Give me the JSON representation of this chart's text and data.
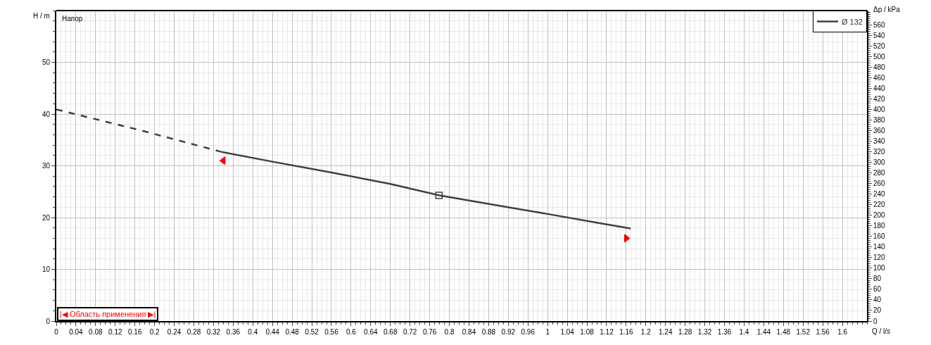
{
  "chart_data": {
    "type": "line",
    "ylabel": "H / m",
    "xlabel": "Q / l/s",
    "y2label": "Δp / kPa",
    "annotations": [
      "Напор",
      "|◀ Область применения ▶|"
    ],
    "series": [
      {
        "name": "Ø 132",
        "color": "#404040",
        "line_style": "solid",
        "marker": "none",
        "x": [
          0.336,
          0.44,
          0.56,
          0.68,
          0.78,
          0.9,
          1.0,
          1.1,
          1.169
        ],
        "values": [
          32.7,
          30.8,
          28.7,
          26.5,
          24.3,
          22.3,
          20.7,
          19.0,
          17.9
        ]
      },
      {
        "color": "#404040",
        "line_style": "dashed",
        "marker": "none",
        "x": [
          0,
          0.17,
          0.336
        ],
        "values": [
          40.9,
          36.9,
          32.7
        ]
      },
      {
        "type": "scatter",
        "color": "#404040",
        "marker": "square",
        "x": [
          0.779
        ],
        "values": [
          24.3
        ]
      },
      {
        "type": "scatter",
        "color": "#ff0000",
        "marker": "triangle",
        "x": [
          0.34,
          1.16
        ],
        "values": [
          31,
          16
        ]
      }
    ],
    "xlim": [
      0,
      1.65
    ],
    "xticks": [
      0,
      0.04,
      0.08,
      0.12,
      0.16,
      0.2,
      0.24,
      0.28,
      0.32,
      0.36,
      0.4,
      0.44,
      0.48,
      0.52,
      0.56,
      0.6,
      0.64,
      0.68,
      0.72,
      0.76,
      0.8,
      0.84,
      0.88,
      0.92,
      0.96,
      1,
      1.04,
      1.08,
      1.12,
      1.16,
      1.2,
      1.24,
      1.28,
      1.32,
      1.36,
      1.4,
      1.44,
      1.48,
      1.52,
      1.56,
      1.6
    ],
    "ylim": [
      0,
      60
    ],
    "yticks": [
      0,
      10,
      20,
      30,
      40,
      50
    ],
    "y2lim": [
      0,
      587
    ],
    "y2ticks": [
      0,
      20,
      40,
      60,
      80,
      100,
      120,
      140,
      160,
      180,
      200,
      220,
      240,
      260,
      280,
      300,
      320,
      340,
      360,
      380,
      400,
      420,
      440,
      460,
      480,
      500,
      520,
      540,
      560
    ],
    "grid": true,
    "legend": "top right"
  }
}
